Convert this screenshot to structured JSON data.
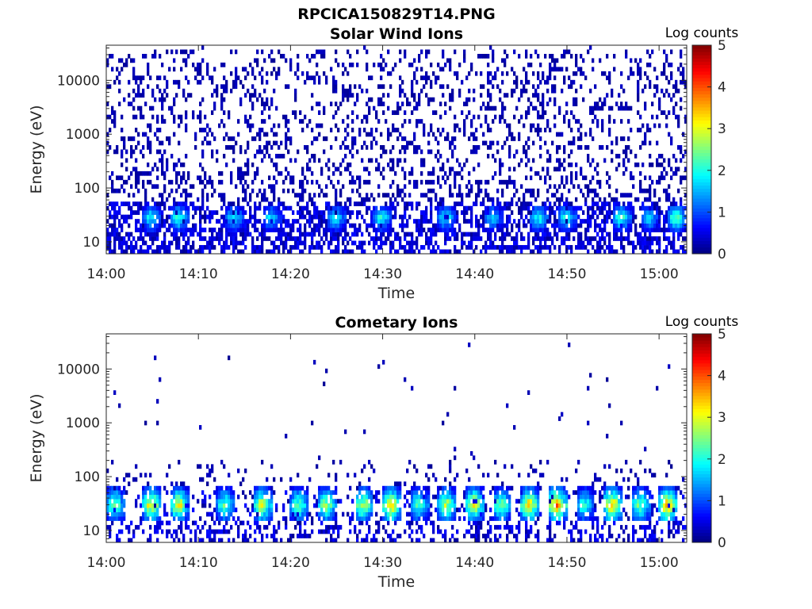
{
  "figure": {
    "title": "RPCICA150829T14.PNG"
  },
  "chart_data": [
    {
      "type": "heatmap",
      "title": "Solar Wind Ions",
      "xlabel": "Time",
      "ylabel": "Energy (eV)",
      "y_scale": "log",
      "x_range": [
        "14:00",
        "15:03"
      ],
      "y_range": [
        6,
        45000
      ],
      "x_ticks": [
        "14:00",
        "14:10",
        "14:20",
        "14:30",
        "14:40",
        "14:50",
        "15:00"
      ],
      "y_ticks": [
        "10",
        "100",
        "1000",
        "10000"
      ],
      "colorbar": {
        "label": "Log counts",
        "min": 0,
        "max": 5,
        "ticks": [
          "0",
          "1",
          "2",
          "3",
          "4",
          "5"
        ],
        "colormap": "jet"
      },
      "background_scatter": {
        "energy_range": [
          6,
          40000
        ],
        "typical_log_counts": 0.1,
        "density": "high"
      },
      "ion_bursts": {
        "start_times": [
          "14:04",
          "14:07",
          "14:13",
          "14:17",
          "14:24",
          "14:29",
          "14:36",
          "14:41",
          "14:46",
          "14:49",
          "14:55",
          "14:58",
          "15:01"
        ],
        "energy_band": [
          15,
          50
        ],
        "peak_energy": 28,
        "peak_log_counts": [
          2.0,
          2.2,
          1.9,
          1.8,
          1.9,
          2.0,
          1.9,
          1.8,
          2.1,
          2.0,
          2.2,
          1.8,
          2.4
        ]
      }
    },
    {
      "type": "heatmap",
      "title": "Cometary Ions",
      "xlabel": "Time",
      "ylabel": "Energy (eV)",
      "y_scale": "log",
      "x_range": [
        "14:00",
        "15:03"
      ],
      "y_range": [
        6,
        45000
      ],
      "x_ticks": [
        "14:00",
        "14:10",
        "14:20",
        "14:30",
        "14:40",
        "14:50",
        "15:00"
      ],
      "y_ticks": [
        "10",
        "100",
        "1000",
        "10000"
      ],
      "colorbar": {
        "label": "Log counts",
        "min": 0,
        "max": 5,
        "ticks": [
          "0",
          "1",
          "2",
          "3",
          "4",
          "5"
        ],
        "colormap": "jet"
      },
      "background_scatter": {
        "energy_range": [
          6,
          30000
        ],
        "typical_log_counts": 0.1,
        "density": "sparse"
      },
      "ion_bursts": {
        "start_times": [
          "14:00",
          "14:04",
          "14:07",
          "14:12",
          "14:16",
          "14:20",
          "14:23",
          "14:27",
          "14:30",
          "14:33",
          "14:36",
          "14:39",
          "14:42",
          "14:45",
          "14:48",
          "14:51",
          "14:54",
          "14:57",
          "15:00"
        ],
        "energy_band": [
          15,
          70
        ],
        "peak_energy": 30,
        "peak_log_counts": [
          2.6,
          3.3,
          3.1,
          2.4,
          3.0,
          2.5,
          2.7,
          3.0,
          3.4,
          2.3,
          2.9,
          3.2,
          2.6,
          3.4,
          3.7,
          2.2,
          3.5,
          2.6,
          3.6
        ]
      }
    }
  ]
}
